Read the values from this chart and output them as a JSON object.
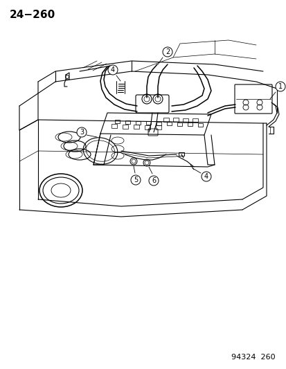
{
  "title": "24−260",
  "footer": "94324  260",
  "bg_color": "#ffffff",
  "title_fontsize": 11,
  "title_fontweight": "bold",
  "footer_fontsize": 8,
  "lw_main": 0.8,
  "lw_thick": 1.1,
  "lw_thin": 0.5,
  "callout_r": 7,
  "callout_fs": 7
}
